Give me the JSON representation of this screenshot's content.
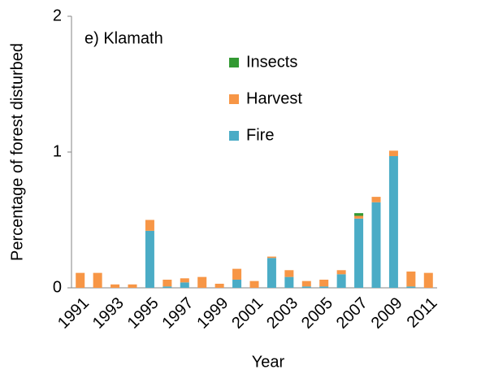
{
  "chart_data": {
    "type": "bar",
    "stacked": true,
    "annotation": "e) Klamath",
    "x_label": "Year",
    "y_label": "Percentage of forest disturbed",
    "categories": [
      "1991",
      null,
      "1993",
      null,
      "1995",
      null,
      "1997",
      null,
      "1999",
      null,
      "2001",
      null,
      "2003",
      null,
      "2005",
      null,
      "2007",
      null,
      "2009",
      null,
      "2011"
    ],
    "series": [
      {
        "name": "Fire",
        "color": "#4bacc6",
        "values": [
          0,
          0,
          0,
          0,
          0.42,
          0.01,
          0.04,
          0,
          0,
          0.06,
          0,
          0.22,
          0.08,
          0.01,
          0.01,
          0.1,
          0.51,
          0.63,
          0.97,
          0.01,
          0
        ]
      },
      {
        "name": "Harvest",
        "color": "#f79646",
        "values": [
          0.11,
          0.11,
          0.025,
          0.025,
          0.08,
          0.05,
          0.03,
          0.08,
          0.03,
          0.08,
          0.05,
          0.01,
          0.05,
          0.04,
          0.05,
          0.03,
          0.02,
          0.04,
          0.04,
          0.11,
          0.11
        ]
      },
      {
        "name": "Insects",
        "color": "#339933",
        "values": [
          0,
          0,
          0,
          0,
          0,
          0,
          0,
          0,
          0,
          0,
          0,
          0,
          0,
          0,
          0,
          0,
          0.02,
          0,
          0,
          0,
          0
        ]
      }
    ],
    "ylim": [
      0,
      2
    ],
    "yticks": [
      0,
      1,
      2
    ],
    "grid": false
  }
}
